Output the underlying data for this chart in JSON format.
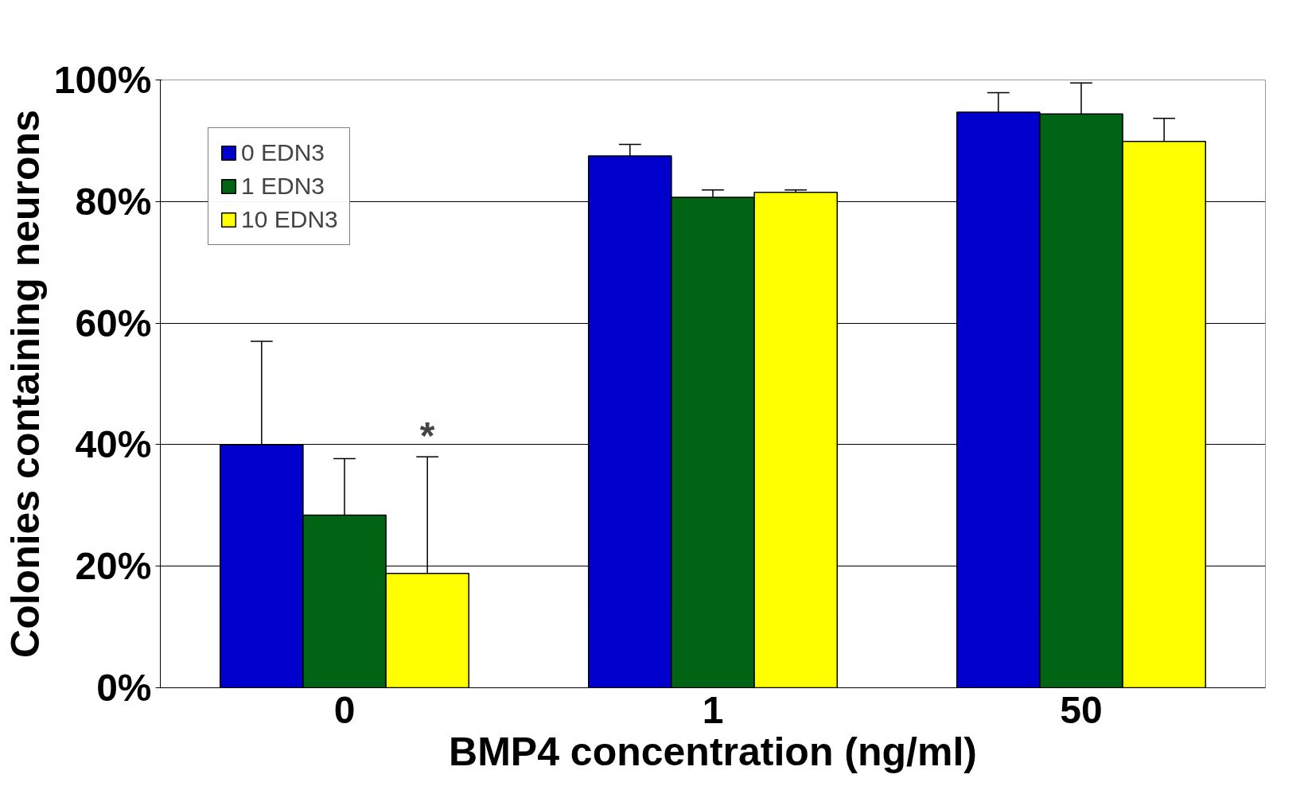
{
  "chart_data": {
    "type": "bar",
    "xlabel": "BMP4 concentration (ng/ml)",
    "ylabel": "Colonies containing neurons",
    "categories": [
      "0",
      "1",
      "50"
    ],
    "series": [
      {
        "name": "0 EDN3",
        "color": "#0000cc",
        "values": [
          40,
          87.5,
          94.7
        ],
        "errors": [
          [
            40,
            57
          ],
          [
            87.5,
            89.4
          ],
          [
            94.7,
            97.9
          ]
        ]
      },
      {
        "name": "1 EDN3",
        "color": "#006414",
        "values": [
          28.4,
          80.7,
          94.4
        ],
        "errors": [
          [
            28.4,
            37.7
          ],
          [
            80.7,
            81.9
          ],
          [
            94.4,
            99.5
          ]
        ]
      },
      {
        "name": "10 EDN3",
        "color": "#ffff00",
        "values": [
          18.8,
          81.5,
          89.9
        ],
        "errors": [
          [
            18.8,
            38
          ],
          [
            81.5,
            81.9
          ],
          [
            89.9,
            93.7
          ]
        ]
      }
    ],
    "ylim": [
      0,
      100
    ],
    "yticks": [
      {
        "value": 0,
        "label": "0%"
      },
      {
        "value": 20,
        "label": "20%"
      },
      {
        "value": 40,
        "label": "40%"
      },
      {
        "value": 60,
        "label": "60%"
      },
      {
        "value": 80,
        "label": "80%"
      },
      {
        "value": 100,
        "label": "100%"
      }
    ],
    "grid": "y",
    "legend": "top left",
    "annotations": [
      "*"
    ]
  }
}
